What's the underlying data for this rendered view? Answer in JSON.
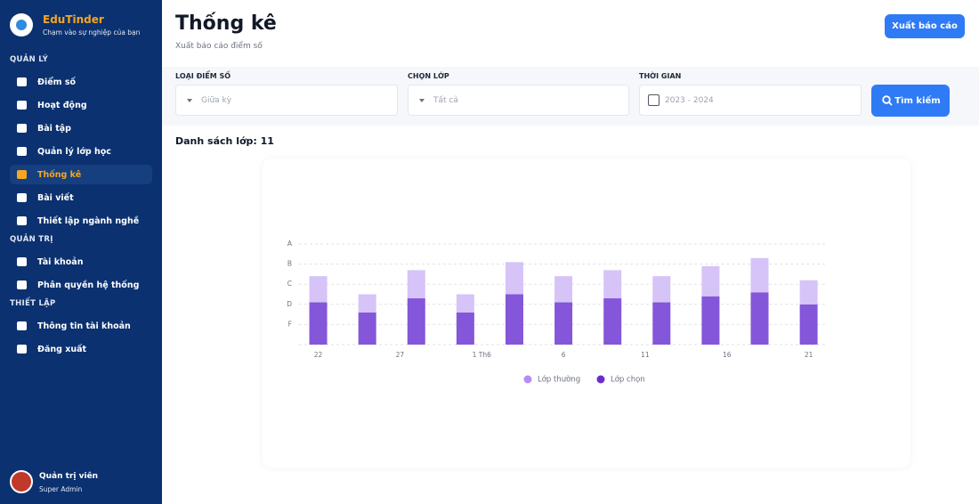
{
  "sidebar": {
    "brand": {
      "name": "EduTinder",
      "tagline": "Chạm vào sự nghiệp của bạn"
    },
    "active": "Thống kê",
    "sections": [
      {
        "title": "QUẢN LÝ",
        "items": [
          "Điểm số",
          "Hoạt động",
          "Bài tập",
          "Quản lý lớp học",
          "Thống kê",
          "Bài viết",
          "Thiết lập ngành nghề"
        ]
      },
      {
        "title": "QUẢN TRỊ",
        "items": [
          "Tài khoản",
          "Phân quyền hệ thống"
        ]
      },
      {
        "title": "THIẾT LẬP",
        "items": [
          "Thông tin tài khoản",
          "Đăng xuất"
        ]
      }
    ],
    "user": {
      "name": "Quản trị viên",
      "role": "Super Admin"
    }
  },
  "header": {
    "title": "Thống kê",
    "subtitle": "Xuất báo cáo điểm số",
    "button": "Xuất báo cáo"
  },
  "filters": [
    {
      "label": "LOẠI ĐIỂM SỐ",
      "value": "Giữa kỳ"
    },
    {
      "label": "CHỌN LỚP",
      "value": "Tất cả"
    },
    {
      "label": "THỜI GIAN",
      "value": "2023 - 2024"
    }
  ],
  "search_button": "Tìm kiếm",
  "list_title": "Danh sách lớp: 11",
  "chart_data": {
    "type": "bar",
    "stacked": true,
    "x": [
      0,
      3,
      6,
      9,
      12,
      15,
      18,
      21,
      24,
      27,
      30
    ],
    "xlim": [
      -1.5,
      31
    ],
    "xticks": [
      {
        "value": 0,
        "label": "22"
      },
      {
        "value": 5,
        "label": "27"
      },
      {
        "value": 10,
        "label": "1 Th6"
      },
      {
        "value": 15,
        "label": "6"
      },
      {
        "value": 20,
        "label": "11"
      },
      {
        "value": 25,
        "label": "16"
      },
      {
        "value": 30,
        "label": "21"
      }
    ],
    "ylim": [
      0,
      5
    ],
    "yticks": [
      {
        "value": 1,
        "label": "F"
      },
      {
        "value": 2,
        "label": "D"
      },
      {
        "value": 3,
        "label": "C"
      },
      {
        "value": 4,
        "label": "B"
      },
      {
        "value": 5,
        "label": "A"
      }
    ],
    "grid": true,
    "series": [
      {
        "name": "Lớp thường",
        "color": "#d6c3f7",
        "legend_color": "#b48ef0",
        "values": [
          1.3,
          0.9,
          1.4,
          0.9,
          1.6,
          1.3,
          1.4,
          1.3,
          1.5,
          1.7,
          1.2
        ]
      },
      {
        "name": "Lớp chọn",
        "color": "#8456d9",
        "legend_color": "#6a2ccf",
        "values": [
          2.1,
          1.6,
          2.3,
          1.6,
          2.5,
          2.1,
          2.3,
          2.1,
          2.4,
          2.6,
          2.0
        ]
      }
    ]
  }
}
